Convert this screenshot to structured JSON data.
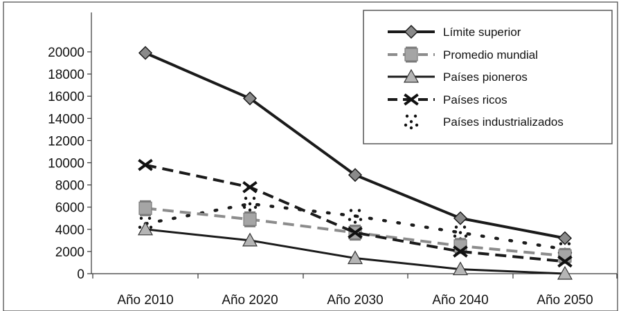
{
  "chart_data": {
    "type": "line",
    "categories": [
      "Año 2010",
      "Año 2020",
      "Año 2030",
      "Año 2040",
      "Año 2050"
    ],
    "ylim": [
      0,
      20000
    ],
    "yticks": [
      0,
      2000,
      4000,
      6000,
      8000,
      10000,
      12000,
      14000,
      16000,
      18000,
      20000
    ],
    "ytick_labels": [
      "0",
      "2000",
      "4000",
      "6000",
      "8000",
      "10000",
      "12000",
      "14000",
      "16000",
      "18000",
      "20000"
    ],
    "grid": false,
    "legend_position": "top-right",
    "series": [
      {
        "name": "Límite superior",
        "values": [
          19900,
          15800,
          8900,
          5000,
          3200
        ],
        "color": "#1a1a1a",
        "line_style": "solid",
        "marker": "diamond"
      },
      {
        "name": "Promedio mundial",
        "values": [
          5900,
          4900,
          3700,
          2500,
          1600
        ],
        "color": "#8c8c8c",
        "line_style": "dashed",
        "marker": "square"
      },
      {
        "name": "Países pioneros",
        "values": [
          4000,
          3000,
          1400,
          400,
          0
        ],
        "color": "#1a1a1a",
        "line_style": "solid",
        "marker": "triangle"
      },
      {
        "name": "Países ricos",
        "values": [
          9800,
          7800,
          3700,
          2000,
          1100
        ],
        "color": "#1a1a1a",
        "line_style": "dashed",
        "marker": "x"
      },
      {
        "name": "Países industrializados",
        "values": [
          4500,
          6300,
          5200,
          3700,
          2200
        ],
        "color": "#1a1a1a",
        "line_style": "dotted",
        "marker": "dots"
      }
    ]
  }
}
